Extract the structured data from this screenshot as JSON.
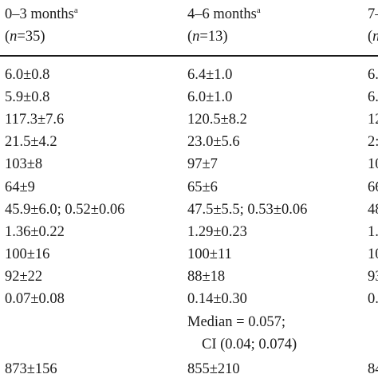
{
  "header": {
    "columns": [
      {
        "title": "0–3 months",
        "sup": "a",
        "n_prefix": "(",
        "n_var": "n",
        "n_suffix": "=35)"
      },
      {
        "title": "4–6 months",
        "sup": "a",
        "n_prefix": "(",
        "n_var": "n",
        "n_suffix": "=13)"
      },
      {
        "title": "7–",
        "sup": "",
        "n_prefix": "(",
        "n_var": "n",
        "n_suffix": ""
      }
    ]
  },
  "rows": [
    [
      "6.0±0.8",
      "6.4±1.0",
      "6."
    ],
    [
      "5.9±0.8",
      "6.0±1.0",
      "6."
    ],
    [
      "117.3±7.6",
      "120.5±8.2",
      "12"
    ],
    [
      "21.5±4.2",
      "23.0±5.6",
      "2:"
    ],
    [
      "103±8",
      "97±7",
      "10"
    ],
    [
      "64±9",
      "65±6",
      "66"
    ],
    [
      "45.9±6.0; 0.52±0.06",
      "47.5±5.5; 0.53±0.06",
      "48"
    ],
    [
      "1.36±0.22",
      "1.29±0.23",
      "1."
    ],
    [
      "100±16",
      "100±11",
      "10"
    ],
    [
      "92±22",
      "88±18",
      "93"
    ],
    [
      "0.07±0.08",
      "0.14±0.30",
      "0."
    ]
  ],
  "extra": {
    "median_line": "Median = 0.057;",
    "ci_line": "CI (0.04; 0.074)"
  },
  "last_row": [
    "873±156",
    "855±210",
    "84"
  ]
}
